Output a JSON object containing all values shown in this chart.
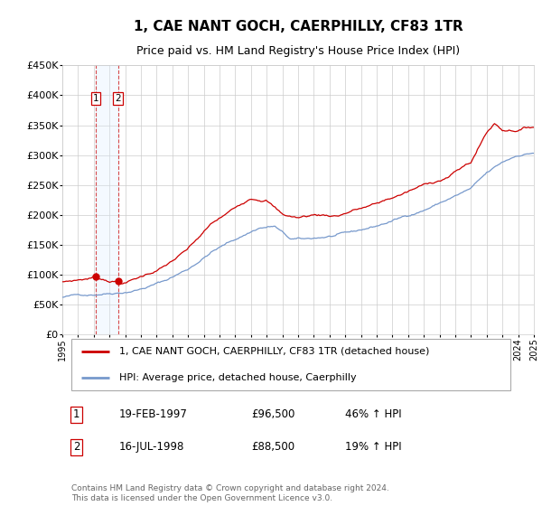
{
  "title": "1, CAE NANT GOCH, CAERPHILLY, CF83 1TR",
  "subtitle": "Price paid vs. HM Land Registry's House Price Index (HPI)",
  "legend_line1": "1, CAE NANT GOCH, CAERPHILLY, CF83 1TR (detached house)",
  "legend_line2": "HPI: Average price, detached house, Caerphilly",
  "table_row1": [
    "1",
    "19-FEB-1997",
    "£96,500",
    "46% ↑ HPI"
  ],
  "table_row2": [
    "2",
    "16-JUL-1998",
    "£88,500",
    "19% ↑ HPI"
  ],
  "footnote": "Contains HM Land Registry data © Crown copyright and database right 2024.\nThis data is licensed under the Open Government Licence v3.0.",
  "hpi_color": "#7799cc",
  "price_color": "#cc0000",
  "marker_color": "#cc0000",
  "vline_color": "#cc0000",
  "vband_color": "#ddeeff",
  "grid_color": "#cccccc",
  "bg_color": "#ffffff",
  "purchase1_year": 1997.12,
  "purchase1_price": 96500,
  "purchase2_year": 1998.54,
  "purchase2_price": 88500,
  "ylim": [
    0,
    450000
  ],
  "yticks": [
    0,
    50000,
    100000,
    150000,
    200000,
    250000,
    300000,
    350000,
    400000,
    450000
  ],
  "xstart": 1995,
  "xend": 2025
}
